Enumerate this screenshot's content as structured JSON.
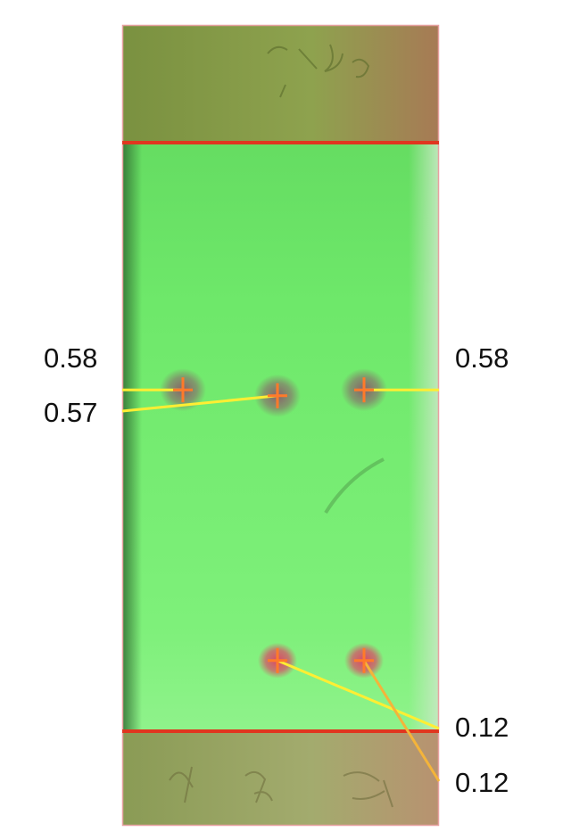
{
  "plate": {
    "colors": {
      "plate_green": "#6fe66a",
      "cap_tint": "#8f9a55",
      "baseline": "#e0361f",
      "solvent_front": "#e0361f",
      "leader_yellow": "#ffee33",
      "leader_orange": "#f4b43a",
      "spot_marker": "#ff7a2a",
      "spot_shadow": "#8a5a6a",
      "spot_red": "#d94a66"
    },
    "spots": [
      {
        "lane": 1,
        "rf": 0.58
      },
      {
        "lane": 2,
        "rf": 0.57
      },
      {
        "lane": 3,
        "rf": 0.58
      },
      {
        "lane": 2,
        "rf": 0.12
      },
      {
        "lane": 3,
        "rf": 0.12
      }
    ]
  },
  "rf_labels": [
    {
      "id": "lane1-upper",
      "text": "0.58"
    },
    {
      "id": "lane2-upper",
      "text": "0.57"
    },
    {
      "id": "lane3-upper",
      "text": "0.58"
    },
    {
      "id": "lane2-lower",
      "text": "0.12"
    },
    {
      "id": "lane3-lower",
      "text": "0.12"
    }
  ]
}
